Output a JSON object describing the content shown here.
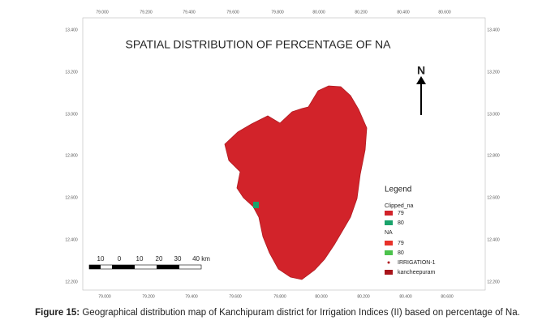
{
  "map": {
    "title": "SPATIAL DISTRIBUTION OF PERCENTAGE OF NA",
    "north": "N",
    "top_ticks": [
      "79.000",
      "79.200",
      "79.400",
      "79.600",
      "79.800",
      "80.000",
      "80.200",
      "80.400",
      "80.600"
    ],
    "bottom_ticks": [
      "79.000",
      "79.200",
      "79.400",
      "79.600",
      "79.800",
      "80.000",
      "80.200",
      "80.400",
      "80.600"
    ],
    "left_ticks": [
      "13.400",
      "13.200",
      "13.000",
      "12.800",
      "12.600",
      "12.400",
      "12.200"
    ],
    "right_ticks": [
      "13.400",
      "13.200",
      "13.000",
      "12.800",
      "12.600",
      "12.400",
      "12.200"
    ]
  },
  "legend": {
    "title": "Legend",
    "clipped": {
      "name": "Clipped_na",
      "items": [
        "79",
        "80"
      ]
    },
    "na": {
      "name": "NA",
      "items": [
        "79",
        "80"
      ]
    },
    "irrigation": "IRRIGATION-1",
    "district": "kancheepuram"
  },
  "scale_bar": {
    "labels": [
      "10",
      "0",
      "10",
      "20",
      "30",
      "40 km"
    ]
  },
  "caption": {
    "label": "Figure 15:",
    "text": "Geographical distribution map of Kanchipuram district for Irrigation Indices (II) based on percentage of Na."
  }
}
